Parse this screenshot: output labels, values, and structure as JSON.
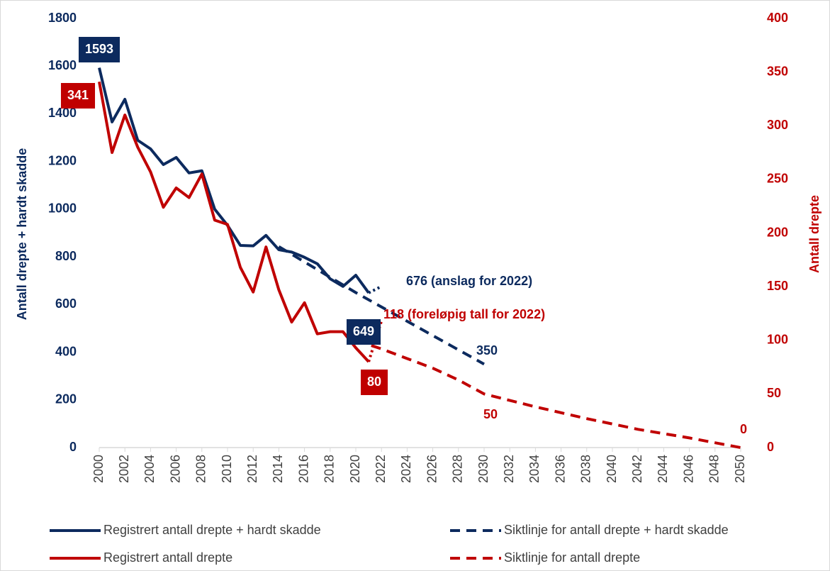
{
  "chart_data": {
    "type": "line",
    "ylabel": "Antall drepte + hardt skadde",
    "y2label": "Antall drepte",
    "xlim": [
      2000,
      2050
    ],
    "xticks": [
      2000,
      2002,
      2004,
      2006,
      2008,
      2010,
      2012,
      2014,
      2016,
      2018,
      2020,
      2022,
      2024,
      2026,
      2028,
      2030,
      2032,
      2034,
      2036,
      2038,
      2040,
      2042,
      2044,
      2046,
      2048,
      2050
    ],
    "ylim": [
      0,
      1800
    ],
    "yticks": [
      0,
      200,
      400,
      600,
      800,
      1000,
      1200,
      1400,
      1600,
      1800
    ],
    "y2lim": [
      0,
      400
    ],
    "y2ticks": [
      0,
      50,
      100,
      150,
      200,
      250,
      300,
      350,
      400
    ],
    "series": [
      {
        "name": "Registrert antall drepte + hardt skadde",
        "color": "#0c2a5e",
        "style": "solid",
        "x": [
          2000,
          2001,
          2002,
          2003,
          2004,
          2005,
          2006,
          2007,
          2008,
          2009,
          2010,
          2011,
          2012,
          2013,
          2014,
          2015,
          2016,
          2017,
          2018,
          2019,
          2020,
          2021
        ],
        "values": [
          1593,
          1366,
          1461,
          1289,
          1253,
          1187,
          1217,
          1152,
          1161,
          1000,
          932,
          848,
          846,
          890,
          830,
          820,
          798,
          771,
          708,
          676,
          723,
          649
        ]
      },
      {
        "name": "Siktlinje for antall drepte + hardt skadde",
        "color": "#0c2a5e",
        "style": "dashed",
        "x": [
          2014,
          2020,
          2030
        ],
        "values": [
          843,
          650,
          350
        ]
      },
      {
        "name": "Registrert antall drepte",
        "color": "#c00000",
        "style": "solid",
        "axis": "y2",
        "x": [
          2000,
          2001,
          2002,
          2003,
          2004,
          2005,
          2006,
          2007,
          2008,
          2009,
          2010,
          2011,
          2012,
          2013,
          2014,
          2015,
          2016,
          2017,
          2018,
          2019,
          2020,
          2021
        ],
        "values": [
          341,
          275,
          310,
          280,
          257,
          224,
          242,
          233,
          255,
          212,
          208,
          168,
          145,
          187,
          147,
          117,
          135,
          106,
          108,
          108,
          93,
          80
        ]
      },
      {
        "name": "Siktlinje for antall drepte",
        "color": "#c00000",
        "style": "dashed",
        "axis": "y2",
        "x": [
          2020,
          2022,
          2024,
          2026,
          2028,
          2030,
          2034,
          2038,
          2042,
          2046,
          2050
        ],
        "values": [
          100,
          92,
          83,
          74,
          63,
          50,
          38,
          27,
          17,
          9,
          0
        ]
      },
      {
        "color": "#0c2a5e",
        "style": "dotted",
        "x": [
          2021,
          2022
        ],
        "values": [
          649,
          676
        ]
      },
      {
        "color": "#c00000",
        "style": "dotted",
        "axis": "y2",
        "x": [
          2021,
          2022
        ],
        "values": [
          80,
          118
        ]
      }
    ],
    "annotations": [
      "1593",
      "341",
      "649",
      "80",
      "676 (anslag for 2022)",
      "118 (foreløpig tall for 2022)",
      "350",
      "50",
      "0"
    ]
  }
}
